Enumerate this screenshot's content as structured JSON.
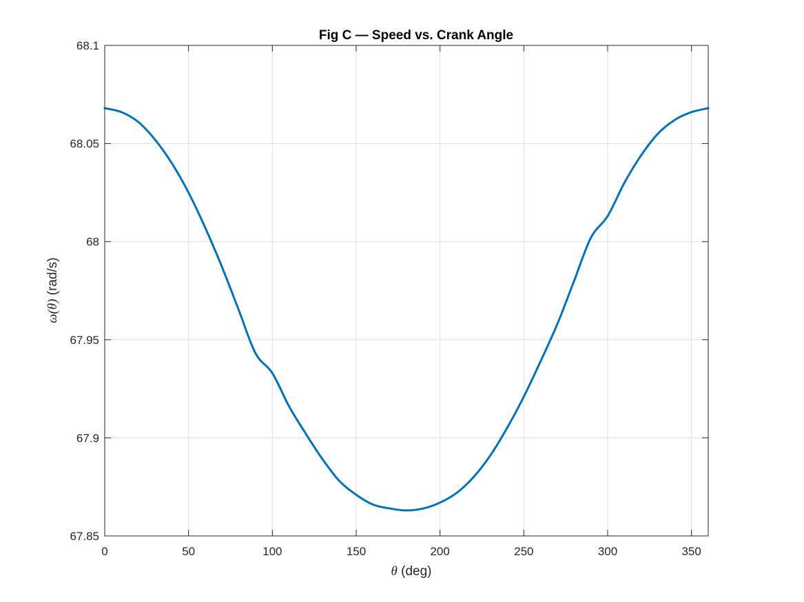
{
  "chart_data": {
    "type": "line",
    "title": "Fig C — Speed vs. Crank Angle",
    "xlabel": {
      "symbol": "θ",
      "text": " (deg)"
    },
    "ylabel": {
      "symbol": "ω(θ)",
      "text": " (rad/s)"
    },
    "xlim": [
      0,
      360
    ],
    "ylim": [
      67.85,
      68.1
    ],
    "xticks": [
      0,
      50,
      100,
      150,
      200,
      250,
      300,
      350
    ],
    "xtick_labels": [
      "0",
      "50",
      "100",
      "150",
      "200",
      "250",
      "300",
      "350"
    ],
    "yticks": [
      67.85,
      67.9,
      67.95,
      68,
      68.05,
      68.1
    ],
    "ytick_labels": [
      "67.85",
      "67.9",
      "67.95",
      "68",
      "68.05",
      "68.1"
    ],
    "grid": true,
    "series": [
      {
        "color": "#0072BD",
        "x": [
          0,
          10,
          20,
          30,
          40,
          50,
          60,
          70,
          80,
          90,
          100,
          110,
          120,
          130,
          140,
          150,
          160,
          170,
          180,
          190,
          200,
          210,
          220,
          230,
          240,
          250,
          260,
          270,
          280,
          290,
          300,
          310,
          320,
          330,
          340,
          350,
          360
        ],
        "y": [
          68.068,
          68.066,
          68.061,
          68.052,
          68.04,
          68.025,
          68.007,
          67.987,
          67.965,
          67.943,
          67.933,
          67.916,
          67.902,
          67.889,
          67.878,
          67.871,
          67.866,
          67.864,
          67.863,
          67.864,
          67.867,
          67.872,
          67.88,
          67.891,
          67.905,
          67.921,
          67.939,
          67.958,
          67.98,
          68.002,
          68.013,
          68.03,
          68.044,
          68.055,
          68.062,
          68.066,
          68.068
        ]
      }
    ]
  }
}
